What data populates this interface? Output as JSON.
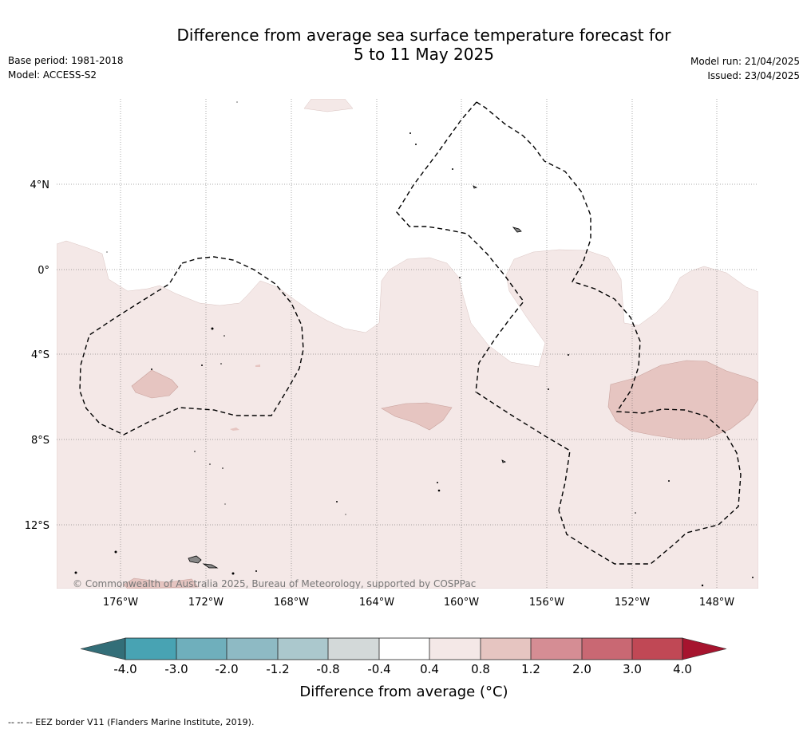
{
  "title": {
    "line1": "Difference from average sea surface temperature forecast for",
    "line2": "5 to 11 May 2025"
  },
  "info_left": {
    "base_period": "Base period: 1981-2018",
    "model": "Model: ACCESS-S2"
  },
  "info_right": {
    "model_run": "Model run: 21/04/2025",
    "issued": "Issued: 23/04/2025"
  },
  "map": {
    "lat_labels": [
      "4°N",
      "0°",
      "4°S",
      "8°S",
      "12°S"
    ],
    "lon_labels": [
      "176°W",
      "172°W",
      "168°W",
      "164°W",
      "160°W",
      "156°W",
      "152°W",
      "148°W"
    ],
    "lon_range": [
      "178.9°W",
      "146°W"
    ],
    "lat_range": [
      "7.9°N",
      "15°S"
    ],
    "grid": true,
    "copyright": "© Commonwealth of Australia 2025, Bureau of Meteorology, supported by COSPPac"
  },
  "colorbar": {
    "label": "Difference from average (°C)",
    "ticks": [
      "-4.0",
      "-3.0",
      "-2.0",
      "-1.2",
      "-0.8",
      "-0.4",
      "0.4",
      "0.8",
      "1.2",
      "2.0",
      "3.0",
      "4.0"
    ],
    "colors": {
      "below_-4": "#336e78",
      "-4_-3": "#48a3b3",
      "-3_-2": "#6fafbc",
      "-2_-1.2": "#8ebac4",
      "-1.2_-0.8": "#abc8cd",
      "-0.8_-0.4": "#d3d9d9",
      "-0.4_0.4": "#ffffff",
      "0.4_0.8": "#f4e8e7",
      "0.8_1.2": "#e6c5c1",
      "1.2_2.0": "#d58d94",
      "2.0_3.0": "#c96873",
      "3.0_4.0": "#c04855",
      "above_4": "#a6142e"
    }
  },
  "footnote": "--  --  -- EEZ border V11 (Flanders Marine Institute, 2019)."
}
